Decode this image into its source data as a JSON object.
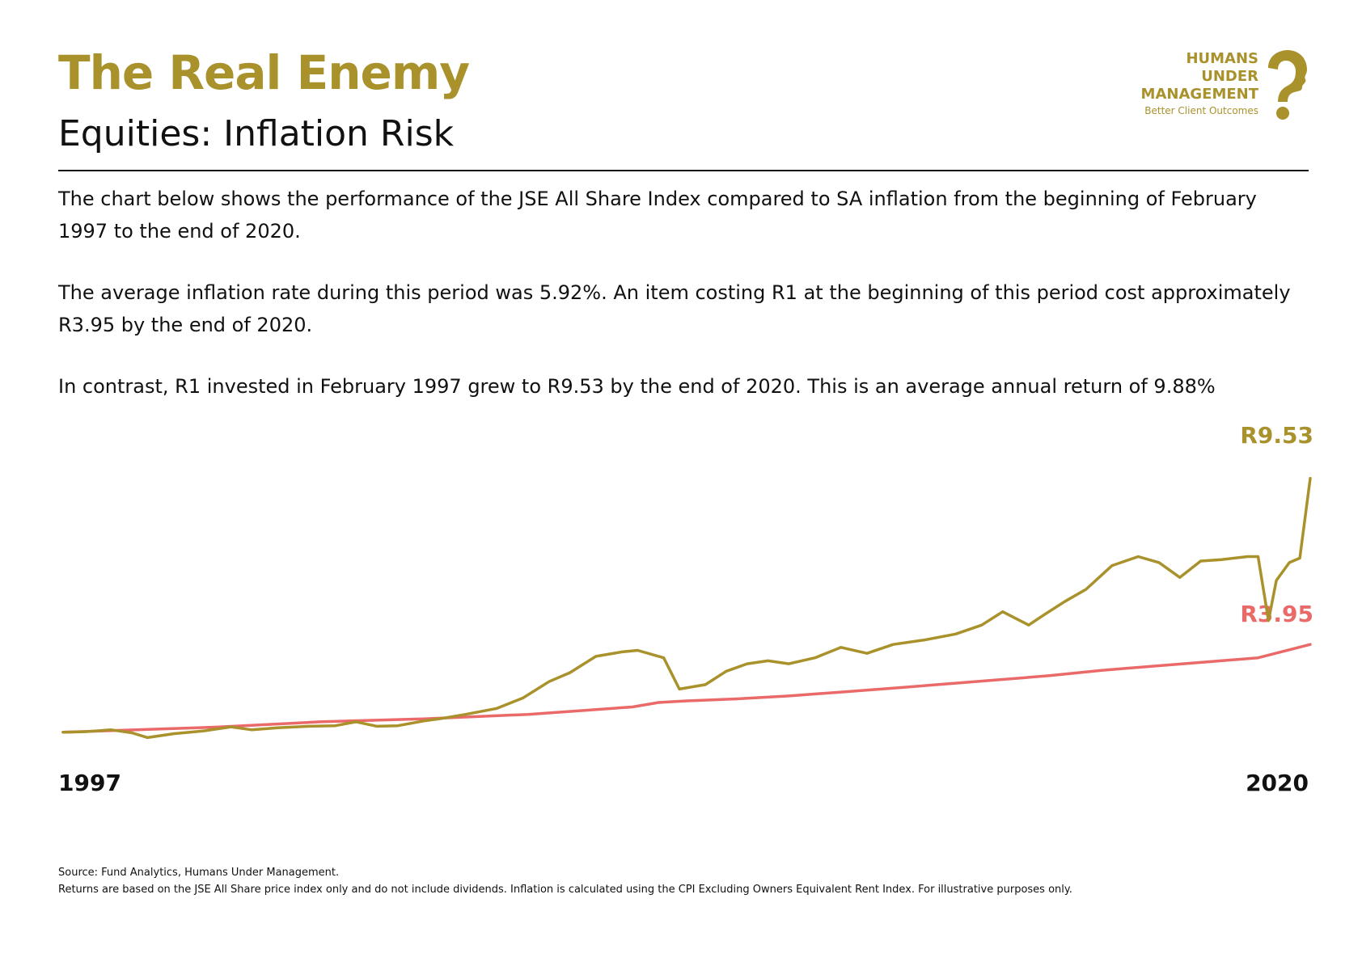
{
  "header": {
    "title": "The Real Enemy",
    "subtitle": "Equities: Inflation Risk"
  },
  "logo": {
    "line1": "HUMANS",
    "line2": "UNDER",
    "line3": "MANAGEMENT",
    "tagline": "Better Client Outcomes",
    "icon": "question-head-icon"
  },
  "body": {
    "paragraph1": "The chart below shows the performance of the JSE All Share Index compared to SA inflation from the beginning of February 1997 to the end of 2020.",
    "paragraph2": "The average inflation rate during this period was 5.92%. An item costing R1 at the beginning of this period cost approximately R3.95 by the end of 2020.",
    "paragraph3": "In contrast, R1 invested in February 1997 grew to R9.53 by the end of 2020. This is an average annual return of 9.88%"
  },
  "chart_data": {
    "type": "line",
    "x_start_label": "1997",
    "x_end_label": "2020",
    "x_range": [
      1997.08,
      2021.0
    ],
    "y_range": [
      0.75,
      10.2
    ],
    "grid": false,
    "legend": "none",
    "series": [
      {
        "end_label": "R9.53",
        "color": "#a9922b",
        "points": [
          [
            1997.08,
            1.0
          ],
          [
            1997.5,
            1.02
          ],
          [
            1998.0,
            1.08
          ],
          [
            1998.4,
            0.98
          ],
          [
            1998.7,
            0.82
          ],
          [
            1999.2,
            0.95
          ],
          [
            1999.8,
            1.05
          ],
          [
            2000.3,
            1.18
          ],
          [
            2000.7,
            1.08
          ],
          [
            2001.2,
            1.15
          ],
          [
            2001.8,
            1.2
          ],
          [
            2002.3,
            1.22
          ],
          [
            2002.7,
            1.35
          ],
          [
            2003.1,
            1.2
          ],
          [
            2003.5,
            1.22
          ],
          [
            2004.0,
            1.38
          ],
          [
            2004.3,
            1.45
          ],
          [
            2004.8,
            1.6
          ],
          [
            2005.4,
            1.8
          ],
          [
            2005.9,
            2.15
          ],
          [
            2006.4,
            2.7
          ],
          [
            2006.8,
            3.0
          ],
          [
            2007.3,
            3.55
          ],
          [
            2007.8,
            3.7
          ],
          [
            2008.1,
            3.75
          ],
          [
            2008.6,
            3.5
          ],
          [
            2008.9,
            2.45
          ],
          [
            2009.4,
            2.6
          ],
          [
            2009.8,
            3.05
          ],
          [
            2010.2,
            3.3
          ],
          [
            2010.6,
            3.4
          ],
          [
            2011.0,
            3.3
          ],
          [
            2011.5,
            3.5
          ],
          [
            2012.0,
            3.85
          ],
          [
            2012.5,
            3.65
          ],
          [
            2013.0,
            3.95
          ],
          [
            2013.6,
            4.1
          ],
          [
            2014.2,
            4.3
          ],
          [
            2014.7,
            4.6
          ],
          [
            2015.1,
            5.05
          ],
          [
            2015.6,
            4.6
          ],
          [
            2015.9,
            4.95
          ],
          [
            2016.3,
            5.4
          ],
          [
            2016.7,
            5.8
          ],
          [
            2017.2,
            6.6
          ],
          [
            2017.7,
            6.9
          ],
          [
            2018.1,
            6.7
          ],
          [
            2018.5,
            6.2
          ],
          [
            2018.9,
            6.75
          ],
          [
            2019.3,
            6.8
          ],
          [
            2019.8,
            6.9
          ],
          [
            2020.0,
            6.9
          ],
          [
            2020.2,
            4.75
          ],
          [
            2020.35,
            6.1
          ],
          [
            2020.6,
            6.7
          ],
          [
            2020.8,
            6.85
          ],
          [
            2021.0,
            9.53
          ]
        ]
      },
      {
        "end_label": "R3.95",
        "color": "#ea6a69",
        "points": [
          [
            1997.08,
            1.0
          ],
          [
            2000.0,
            1.17
          ],
          [
            2002.0,
            1.35
          ],
          [
            2004.0,
            1.45
          ],
          [
            2006.0,
            1.6
          ],
          [
            2008.0,
            1.85
          ],
          [
            2008.5,
            2.0
          ],
          [
            2009.0,
            2.05
          ],
          [
            2010.0,
            2.12
          ],
          [
            2011.0,
            2.22
          ],
          [
            2012.0,
            2.35
          ],
          [
            2013.0,
            2.48
          ],
          [
            2014.0,
            2.62
          ],
          [
            2015.0,
            2.76
          ],
          [
            2016.0,
            2.9
          ],
          [
            2017.0,
            3.08
          ],
          [
            2018.0,
            3.22
          ],
          [
            2019.0,
            3.36
          ],
          [
            2020.0,
            3.5
          ],
          [
            2021.0,
            3.95
          ]
        ]
      }
    ]
  },
  "footnotes": {
    "source": "Source: Fund Analytics, Humans Under Management.",
    "disclaimer": "Returns are based on the JSE All Share price index only and do not include dividends. Inflation is calculated using the CPI Excluding Owners Equivalent Rent Index. For illustrative purposes only."
  }
}
